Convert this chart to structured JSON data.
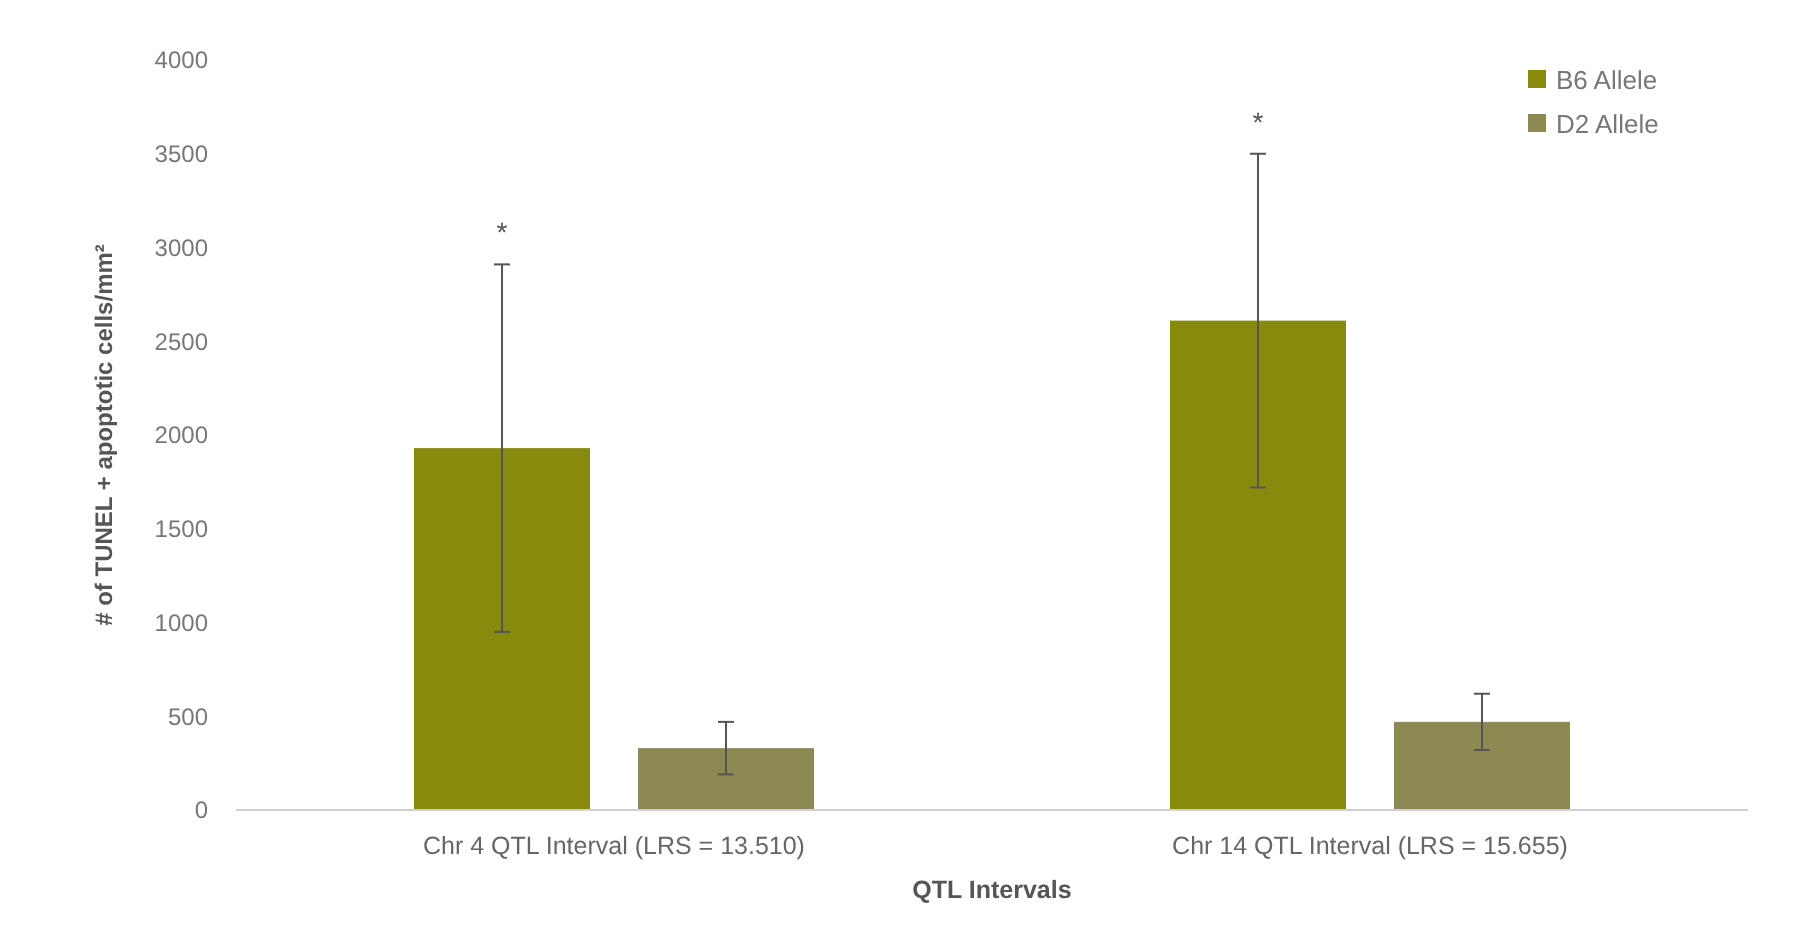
{
  "chart_data": {
    "type": "bar",
    "xlabel": "QTL Intervals",
    "ylabel": "# of TUNEL + apoptotic cells/mm²",
    "categories": [
      "Chr 4 QTL Interval (LRS = 13.510)",
      "Chr 14 QTL Interval (LRS = 15.655)"
    ],
    "series": [
      {
        "name": "B6 Allele",
        "color": "#878a0c",
        "values": [
          1930,
          2610
        ],
        "errors": [
          980,
          890
        ]
      },
      {
        "name": "D2 Allele",
        "color": "#8c8a52",
        "values": [
          330,
          470
        ],
        "errors": [
          140,
          150
        ]
      }
    ],
    "ylim": [
      0,
      4000
    ],
    "yticks": [
      0,
      500,
      1000,
      1500,
      2000,
      2500,
      3000,
      3500,
      4000
    ],
    "grid": false,
    "legend": "top right",
    "annotations": [
      "*",
      "*"
    ]
  }
}
